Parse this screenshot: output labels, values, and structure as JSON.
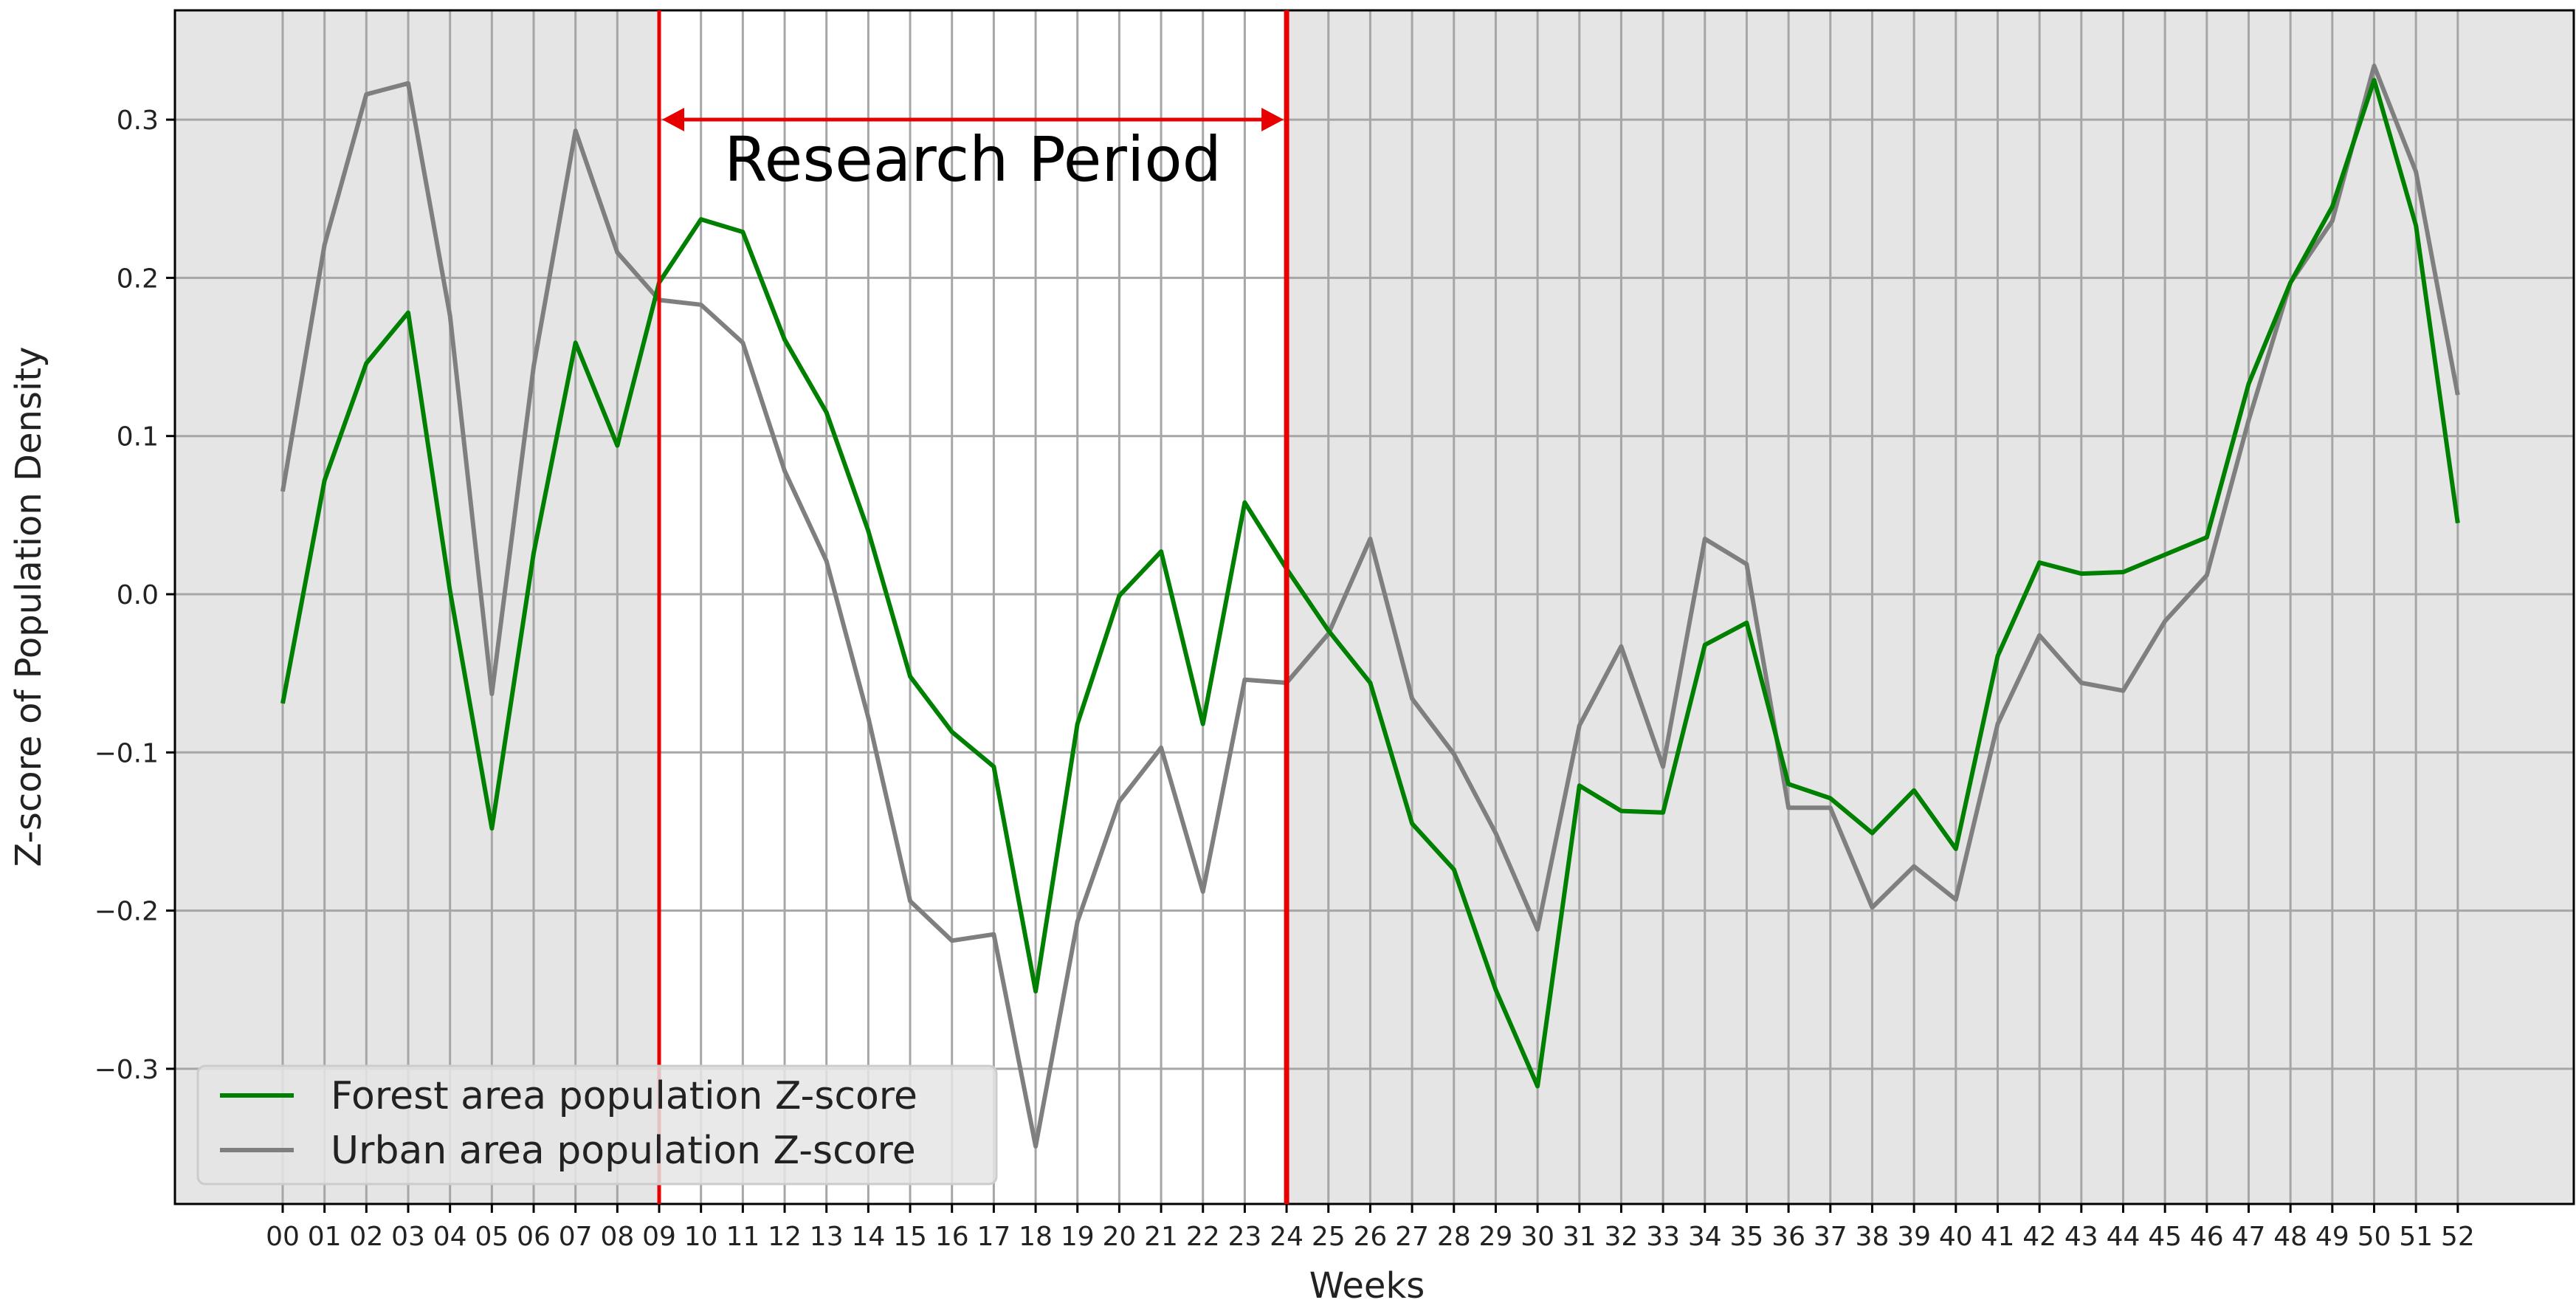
{
  "chart_data": {
    "type": "line",
    "xlabel": "Weeks",
    "ylabel": "Z-score of Population Density",
    "x": [
      "00",
      "01",
      "02",
      "03",
      "04",
      "05",
      "06",
      "07",
      "08",
      "09",
      "10",
      "11",
      "12",
      "13",
      "14",
      "15",
      "16",
      "17",
      "18",
      "19",
      "20",
      "21",
      "22",
      "23",
      "24",
      "25",
      "26",
      "27",
      "28",
      "29",
      "30",
      "31",
      "32",
      "33",
      "34",
      "35",
      "36",
      "37",
      "38",
      "39",
      "40",
      "41",
      "42",
      "43",
      "44",
      "45",
      "46",
      "47",
      "48",
      "49",
      "50",
      "51",
      "52"
    ],
    "ylim": [
      -0.385,
      0.37
    ],
    "yticks": [
      -0.3,
      -0.2,
      -0.1,
      0.0,
      0.1,
      0.2,
      0.3
    ],
    "ytick_labels": [
      "−0.3",
      "−0.2",
      "−0.1",
      "0.0",
      "0.1",
      "0.2",
      "0.3"
    ],
    "grid": true,
    "legend_position": "bottom-left",
    "series": [
      {
        "name": "Forest area population Z-score",
        "color": "#008000",
        "values": [
          -0.069,
          0.072,
          0.146,
          0.178,
          0.002,
          -0.148,
          0.026,
          0.159,
          0.094,
          0.197,
          0.237,
          0.229,
          0.161,
          0.115,
          0.04,
          -0.052,
          -0.087,
          -0.109,
          -0.251,
          -0.082,
          -0.001,
          0.027,
          -0.082,
          0.058,
          0.016,
          -0.023,
          -0.056,
          -0.145,
          -0.174,
          -0.25,
          -0.311,
          -0.121,
          -0.137,
          -0.138,
          -0.032,
          -0.018,
          -0.12,
          -0.129,
          -0.151,
          -0.124,
          -0.161,
          -0.039,
          0.02,
          0.013,
          0.014,
          0.025,
          0.036,
          0.133,
          0.197,
          0.245,
          0.325,
          0.233,
          0.045
        ]
      },
      {
        "name": "Urban area population Z-score",
        "color": "#7f7f7f",
        "values": [
          0.065,
          0.221,
          0.316,
          0.323,
          0.176,
          -0.063,
          0.144,
          0.293,
          0.216,
          0.186,
          0.183,
          0.159,
          0.078,
          0.021,
          -0.078,
          -0.194,
          -0.219,
          -0.215,
          -0.349,
          -0.207,
          -0.131,
          -0.097,
          -0.188,
          -0.054,
          -0.056,
          -0.025,
          0.035,
          -0.066,
          -0.101,
          -0.151,
          -0.212,
          -0.083,
          -0.033,
          -0.109,
          0.035,
          0.019,
          -0.135,
          -0.135,
          -0.198,
          -0.172,
          -0.193,
          -0.082,
          -0.026,
          -0.056,
          -0.061,
          -0.017,
          0.012,
          0.11,
          0.197,
          0.236,
          0.334,
          0.267,
          0.126
        ]
      }
    ],
    "research_period": {
      "label": "Research Period",
      "start": "09",
      "end": "24",
      "color": "#e60000"
    }
  }
}
